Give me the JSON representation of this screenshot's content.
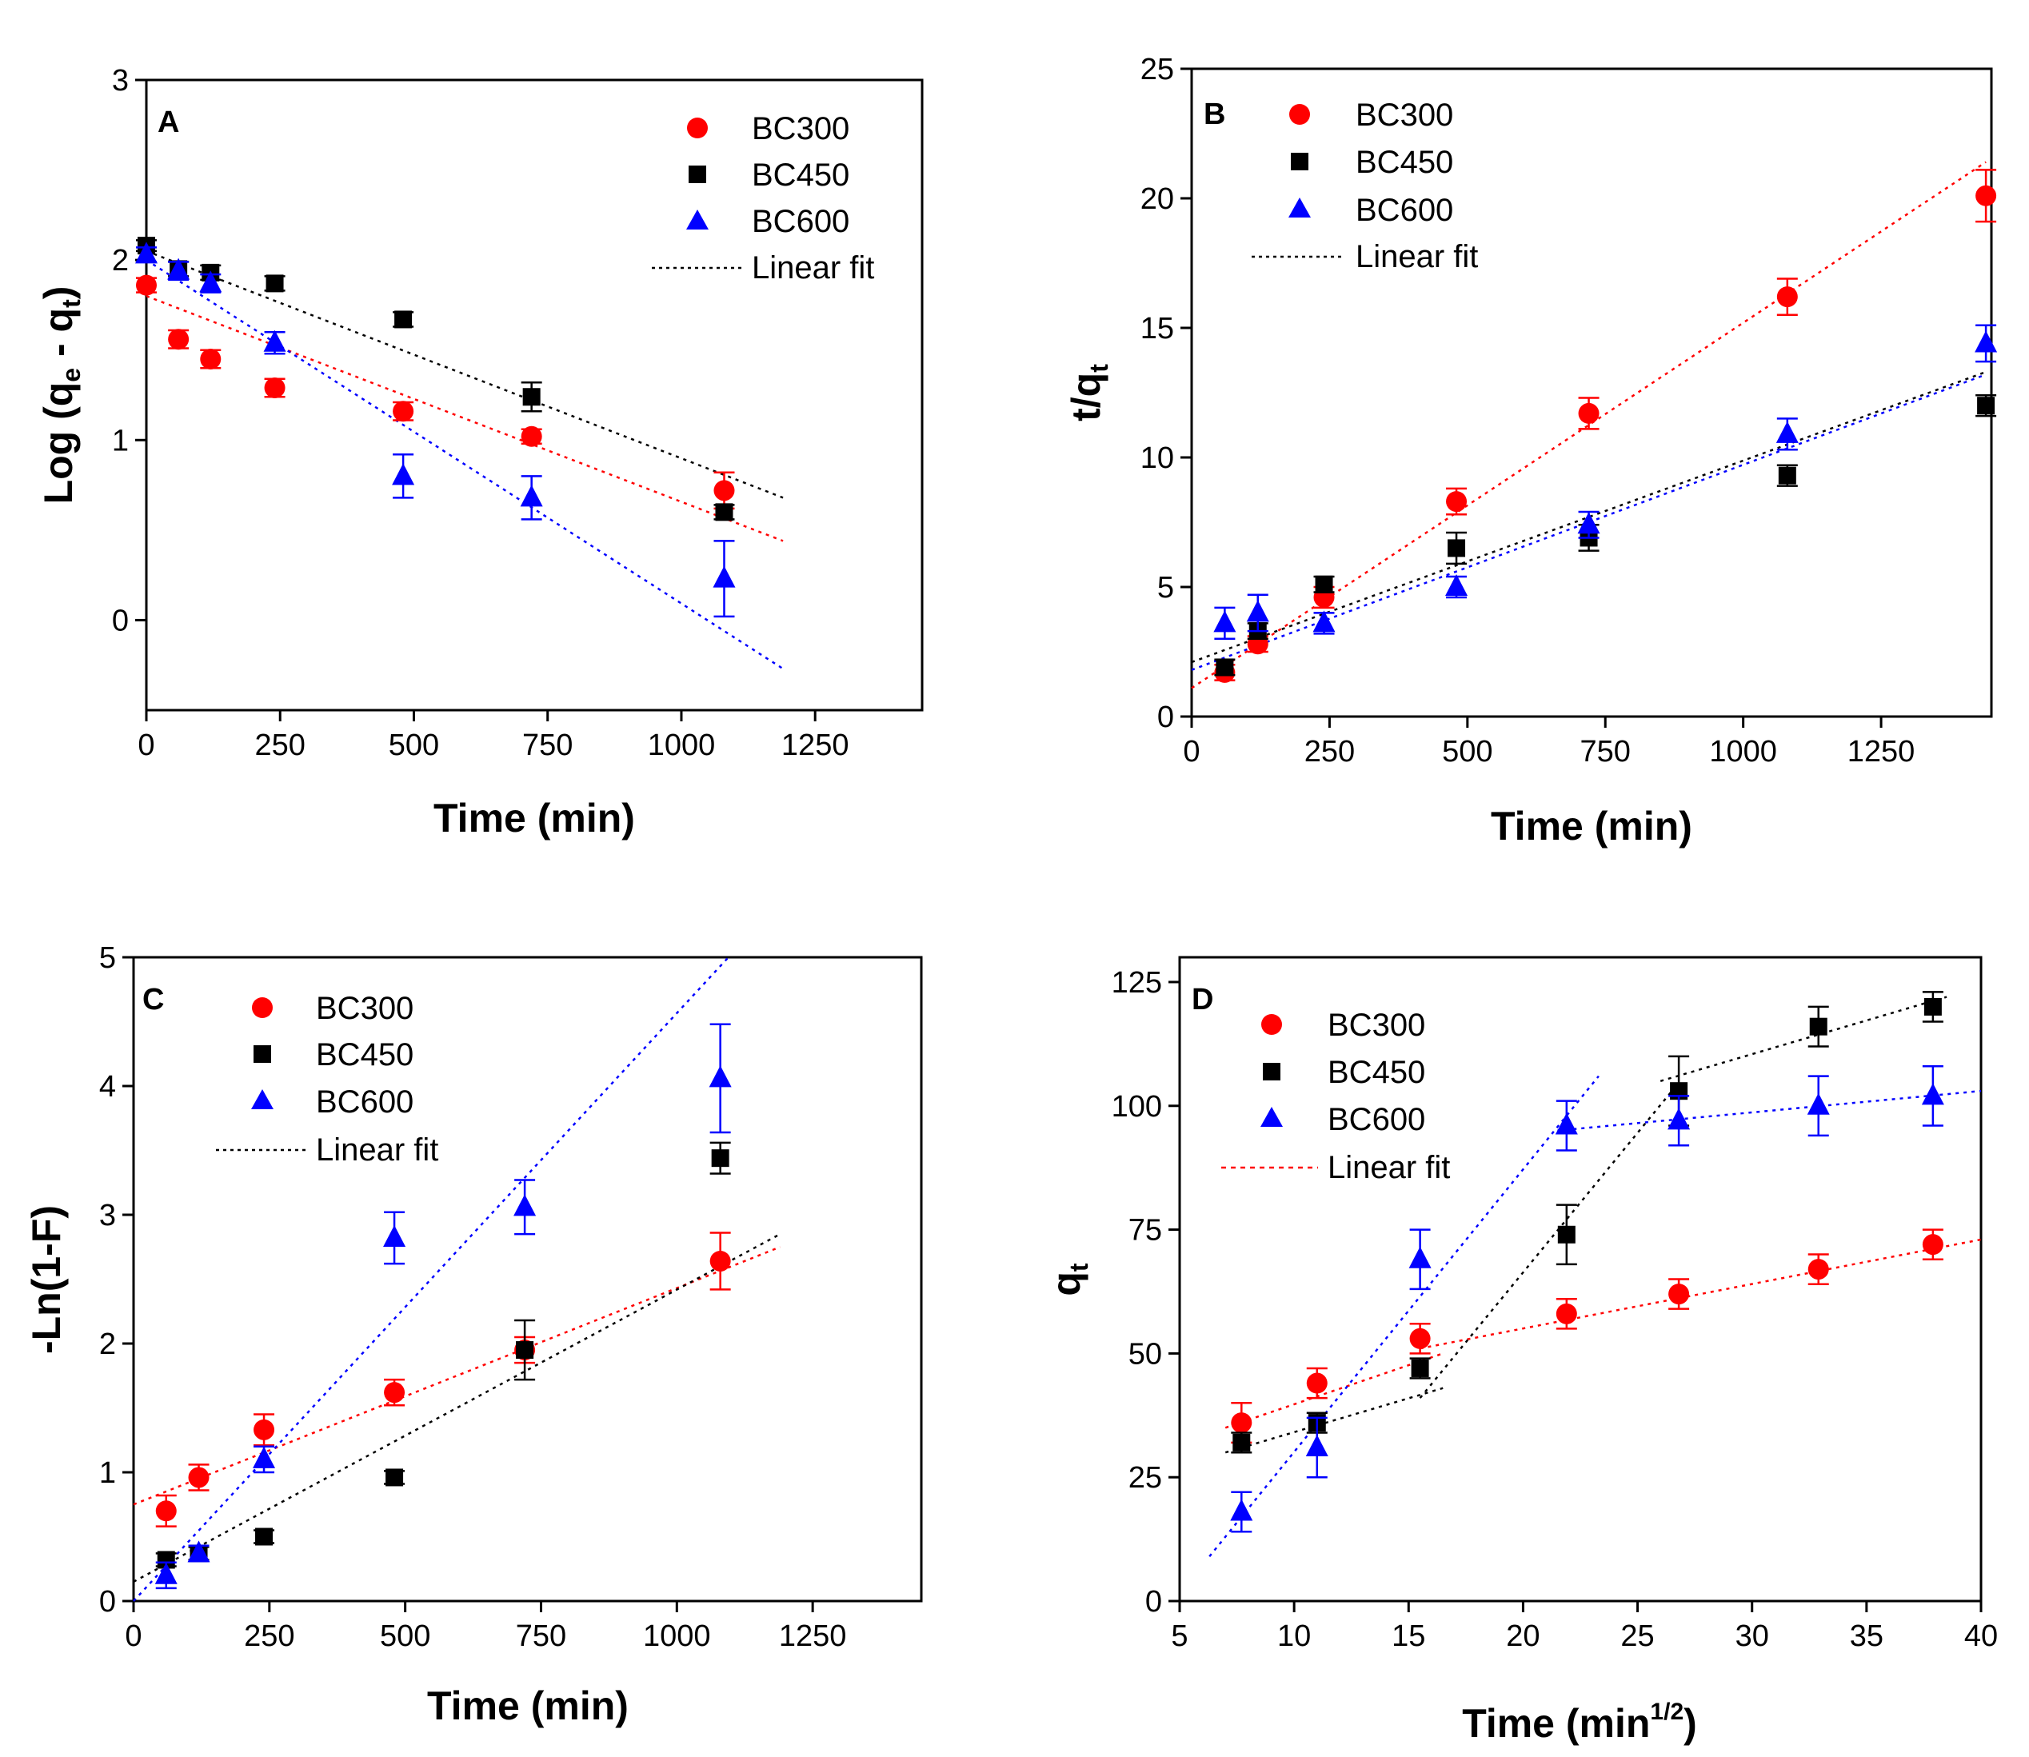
{
  "colors": {
    "BC300": "#ff0000",
    "BC450": "#000000",
    "BC600": "#0000ff",
    "axis": "#000000"
  },
  "chart_data": [
    {
      "panel": "A",
      "type": "scatter",
      "title": "",
      "xlabel": "Time (min)",
      "ylabel_main": "Log (q",
      "ylabel_sub1": "e",
      "ylabel_mid": " - q",
      "ylabel_sub2": "t",
      "ylabel_end": ")",
      "xlim": [
        0,
        1450
      ],
      "ylim": [
        -0.5,
        3
      ],
      "xticks": [
        0,
        250,
        500,
        750,
        1000,
        1250
      ],
      "yticks": [
        0,
        1,
        2,
        3
      ],
      "legend_position": "top-right",
      "fit_label": "Linear fit",
      "series": [
        {
          "name": "BC300",
          "marker": "circle",
          "x": [
            0,
            60,
            120,
            240,
            480,
            720,
            1080
          ],
          "y": [
            1.86,
            1.56,
            1.45,
            1.29,
            1.16,
            1.02,
            0.72
          ],
          "err": [
            0.04,
            0.05,
            0.05,
            0.05,
            0.05,
            0.04,
            0.1
          ],
          "fit": [
            [
              0,
              1.8
            ],
            [
              1190,
              0.44
            ]
          ]
        },
        {
          "name": "BC450",
          "marker": "square",
          "x": [
            0,
            60,
            120,
            240,
            480,
            720,
            1080
          ],
          "y": [
            2.08,
            1.95,
            1.93,
            1.87,
            1.67,
            1.24,
            0.6
          ],
          "err": [
            0.03,
            0.04,
            0.04,
            0.04,
            0.04,
            0.08,
            0.04
          ],
          "fit": [
            [
              0,
              2.05
            ],
            [
              1190,
              0.68
            ]
          ]
        },
        {
          "name": "BC600",
          "marker": "triangle",
          "x": [
            0,
            60,
            120,
            240,
            480,
            720,
            1080
          ],
          "y": [
            2.03,
            1.94,
            1.87,
            1.54,
            0.8,
            0.68,
            0.23
          ],
          "err": [
            0.04,
            0.05,
            0.05,
            0.06,
            0.12,
            0.12,
            0.21
          ],
          "fit": [
            [
              0,
              2.0
            ],
            [
              1190,
              -0.27
            ]
          ]
        }
      ]
    },
    {
      "panel": "B",
      "type": "scatter",
      "title": "",
      "xlabel": "Time (min)",
      "ylabel_main": "t/q",
      "ylabel_sub1": "t",
      "xlim": [
        0,
        1450
      ],
      "ylim": [
        0,
        25
      ],
      "xticks": [
        0,
        250,
        500,
        750,
        1000,
        1250
      ],
      "yticks": [
        0,
        5,
        10,
        15,
        20,
        25
      ],
      "legend_position": "top-left",
      "fit_label": "Linear fit",
      "series": [
        {
          "name": "BC300",
          "marker": "circle",
          "x": [
            60,
            120,
            240,
            480,
            720,
            1080,
            1440
          ],
          "y": [
            1.7,
            2.8,
            4.6,
            8.3,
            11.7,
            16.2,
            20.1
          ],
          "err": [
            0.3,
            0.3,
            0.4,
            0.5,
            0.6,
            0.7,
            1.0
          ],
          "fit": [
            [
              0,
              1.1
            ],
            [
              1440,
              21.4
            ]
          ]
        },
        {
          "name": "BC450",
          "marker": "square",
          "x": [
            60,
            120,
            240,
            480,
            720,
            1080,
            1440
          ],
          "y": [
            1.9,
            3.3,
            5.1,
            6.5,
            6.9,
            9.3,
            12.0
          ],
          "err": [
            0.3,
            0.3,
            0.3,
            0.6,
            0.5,
            0.4,
            0.4
          ],
          "fit": [
            [
              0,
              2.1
            ],
            [
              1440,
              13.3
            ]
          ]
        },
        {
          "name": "BC600",
          "marker": "triangle",
          "x": [
            60,
            120,
            240,
            480,
            720,
            1080,
            1440
          ],
          "y": [
            3.6,
            4.0,
            3.6,
            5.0,
            7.4,
            10.9,
            14.4
          ],
          "err": [
            0.6,
            0.7,
            0.4,
            0.4,
            0.5,
            0.6,
            0.7
          ],
          "fit": [
            [
              0,
              1.8
            ],
            [
              1440,
              13.2
            ]
          ]
        }
      ]
    },
    {
      "panel": "C",
      "type": "scatter",
      "title": "",
      "xlabel": "Time (min)",
      "ylabel_main": "-Ln(1-F)",
      "xlim": [
        0,
        1450
      ],
      "ylim": [
        0,
        5
      ],
      "xticks": [
        0,
        250,
        500,
        750,
        1000,
        1250
      ],
      "yticks": [
        0,
        1,
        2,
        3,
        4,
        5
      ],
      "legend_position": "top-left",
      "fit_label": "Linear fit",
      "series": [
        {
          "name": "BC300",
          "marker": "circle",
          "x": [
            60,
            120,
            240,
            480,
            720,
            1080
          ],
          "y": [
            0.7,
            0.96,
            1.33,
            1.62,
            1.95,
            2.64
          ],
          "err": [
            0.12,
            0.1,
            0.12,
            0.1,
            0.1,
            0.22
          ],
          "fit": [
            [
              0,
              0.75
            ],
            [
              1190,
              2.75
            ]
          ]
        },
        {
          "name": "BC450",
          "marker": "square",
          "x": [
            60,
            120,
            240,
            480,
            720,
            1080
          ],
          "y": [
            0.32,
            0.37,
            0.5,
            0.96,
            1.95,
            3.44
          ],
          "err": [
            0.05,
            0.05,
            0.05,
            0.05,
            0.23,
            0.12
          ],
          "fit": [
            [
              0,
              0.15
            ],
            [
              1190,
              2.85
            ]
          ]
        },
        {
          "name": "BC600",
          "marker": "triangle",
          "x": [
            60,
            120,
            240,
            480,
            720,
            1080
          ],
          "y": [
            0.2,
            0.37,
            1.1,
            2.82,
            3.06,
            4.06
          ],
          "err": [
            0.1,
            0.06,
            0.1,
            0.2,
            0.21,
            0.42
          ],
          "fit": [
            [
              0,
              0.0
            ],
            [
              1095,
              5.0
            ]
          ]
        }
      ]
    },
    {
      "panel": "D",
      "type": "scatter",
      "title": "",
      "xlabel_main": "Time (min",
      "xlabel_sup": "1/2",
      "xlabel_end": ")",
      "ylabel_main": "q",
      "ylabel_sub1": "t",
      "xlim": [
        5,
        40
      ],
      "ylim": [
        0,
        130
      ],
      "xticks": [
        5,
        10,
        15,
        20,
        25,
        30,
        35,
        40
      ],
      "yticks": [
        0,
        25,
        50,
        75,
        100,
        125
      ],
      "legend_position": "top-left",
      "fit_label": "Linear fit",
      "series": [
        {
          "name": "BC300",
          "marker": "circle",
          "x": [
            7.7,
            11.0,
            15.5,
            21.9,
            26.8,
            32.9,
            37.9
          ],
          "y": [
            36,
            44,
            53,
            58,
            62,
            67,
            72
          ],
          "err": [
            4,
            3,
            3,
            3,
            3,
            3,
            3
          ],
          "fit_segments": [
            [
              [
                7.0,
                35
              ],
              [
                16.5,
                50
              ]
            ],
            [
              [
                15.5,
                51
              ],
              [
                40,
                73
              ]
            ]
          ]
        },
        {
          "name": "BC450",
          "marker": "square",
          "x": [
            7.7,
            11.0,
            15.5,
            21.9,
            26.8,
            32.9,
            37.9
          ],
          "y": [
            32,
            36,
            47,
            74,
            103,
            116,
            120
          ],
          "err": [
            2,
            2,
            2,
            6,
            7,
            4,
            3
          ],
          "fit_segments": [
            [
              [
                7.0,
                30
              ],
              [
                16.5,
                43
              ]
            ],
            [
              [
                15.5,
                41
              ],
              [
                26.5,
                103
              ]
            ],
            [
              [
                26.0,
                105
              ],
              [
                38.5,
                122
              ]
            ]
          ]
        },
        {
          "name": "BC600",
          "marker": "triangle",
          "x": [
            7.7,
            11.0,
            15.5,
            21.9,
            26.8,
            32.9,
            37.9
          ],
          "y": [
            18,
            31,
            69,
            96,
            97,
            100,
            102
          ],
          "err": [
            4,
            6,
            6,
            5,
            5,
            6,
            6
          ],
          "fit_segments": [
            [
              [
                6.3,
                9
              ],
              [
                23.3,
                106
              ]
            ],
            [
              [
                21.5,
                95
              ],
              [
                40,
                103
              ]
            ]
          ]
        }
      ]
    }
  ]
}
